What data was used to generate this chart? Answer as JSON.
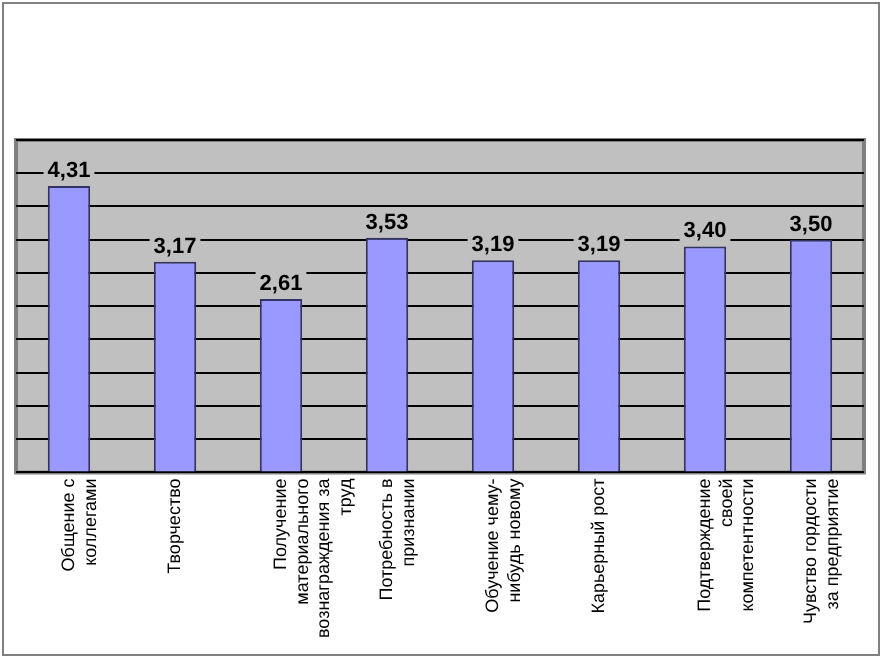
{
  "chart_data": {
    "type": "bar",
    "categories": [
      "Общение с коллегами",
      "Творчество",
      "Получение материального вознаграждения за труд",
      "Потребность в признании",
      "Обучение чему-нибудь новому",
      "Карьерный рост",
      "Подтверждение своей компетентности",
      "Чувство гордости за предприятие"
    ],
    "values": [
      4.31,
      3.17,
      2.61,
      3.53,
      3.19,
      3.19,
      3.4,
      3.5
    ],
    "value_labels": [
      "4,31",
      "3,17",
      "2,61",
      "3,53",
      "3,19",
      "3,19",
      "3,40",
      "3,50"
    ],
    "color": "#9999ff",
    "ylim": [
      0,
      5
    ],
    "yticks": [
      {
        "value": 0,
        "label": null
      },
      {
        "value": 0.5,
        "label": null
      },
      {
        "value": 1,
        "label": null
      },
      {
        "value": 1.5,
        "label": null
      },
      {
        "value": 2,
        "label": null
      },
      {
        "value": 2.5,
        "label": null
      },
      {
        "value": 3,
        "label": null
      },
      {
        "value": 3.5,
        "label": null
      },
      {
        "value": 4,
        "label": null
      },
      {
        "value": 4.5,
        "label": null
      },
      {
        "value": 5,
        "label": null
      }
    ],
    "grid": "y",
    "tick_labels": "x"
  }
}
